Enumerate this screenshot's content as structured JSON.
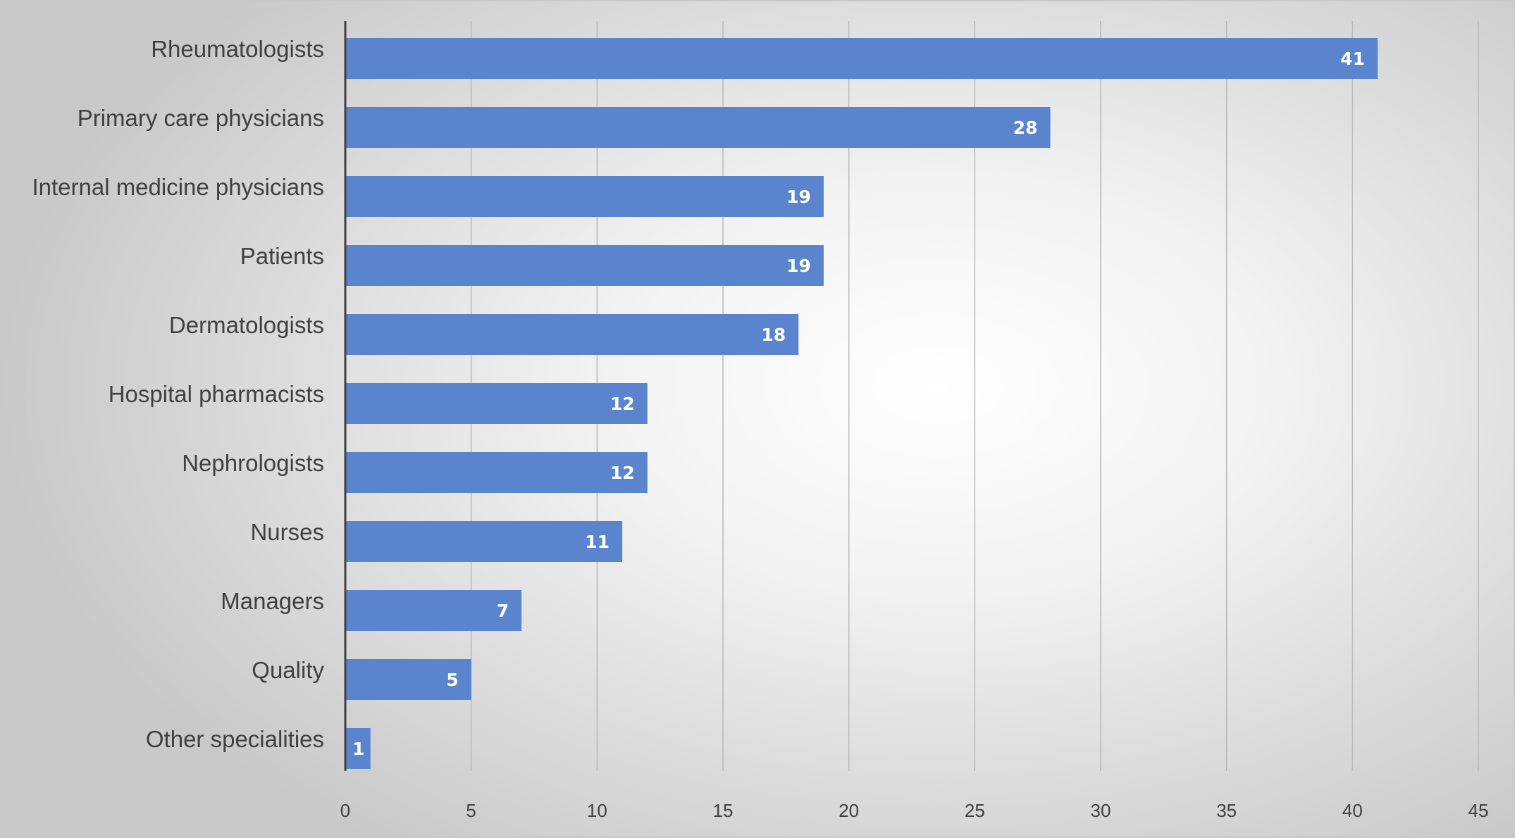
{
  "chart_data": {
    "type": "bar",
    "orientation": "horizontal",
    "categories": [
      "Rheumatologists",
      "Primary care physicians",
      "Internal medicine physicians",
      "Patients",
      "Dermatologists",
      "Hospital pharmacists",
      "Nephrologists",
      "Nurses",
      "Managers",
      "Quality",
      "Other specialities"
    ],
    "values": [
      41,
      28,
      19,
      19,
      18,
      12,
      12,
      11,
      7,
      5,
      1
    ],
    "xticks": [
      "0",
      "5",
      "10",
      "15",
      "20",
      "25",
      "30",
      "35",
      "40",
      "45"
    ],
    "xlim": [
      0,
      45
    ],
    "title": "",
    "xlabel": "",
    "ylabel": "",
    "grid": "vertical",
    "legend": "none",
    "bar_color": "#5b84cf",
    "data_labels": true
  }
}
